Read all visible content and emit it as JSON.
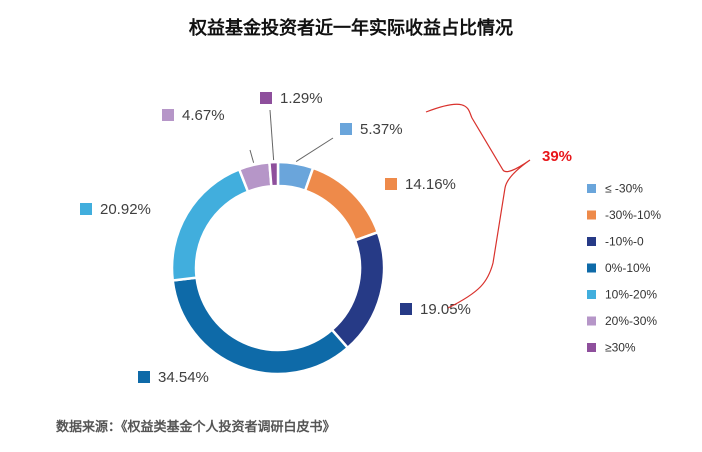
{
  "chart_data": {
    "type": "pie",
    "title": "权益基金投资者近一年实际收益占比情况",
    "categories": [
      "≤ -30%",
      "-30%-10%",
      "-10%-0",
      "0%-10%",
      "10%-20%",
      "20%-30%",
      "≥30%"
    ],
    "values": [
      5.37,
      14.16,
      19.05,
      34.54,
      20.92,
      4.67,
      1.29
    ],
    "value_labels": [
      "5.37%",
      "14.16%",
      "19.05%",
      "34.54%",
      "20.92%",
      "4.67%",
      "1.29%"
    ],
    "colors": [
      "#6aa5db",
      "#ee8a4a",
      "#263a86",
      "#0e6aa8",
      "#41aedd",
      "#b696c8",
      "#8e4f9c"
    ],
    "donut": true,
    "legend_position": "right",
    "annotation": {
      "text": "39%",
      "color": "#e8171b",
      "covers": [
        "≤ -30%",
        "-30%-10%",
        "-10%-0"
      ]
    }
  },
  "source": "数据来源：《权益类基金个人投资者调研白皮书》"
}
